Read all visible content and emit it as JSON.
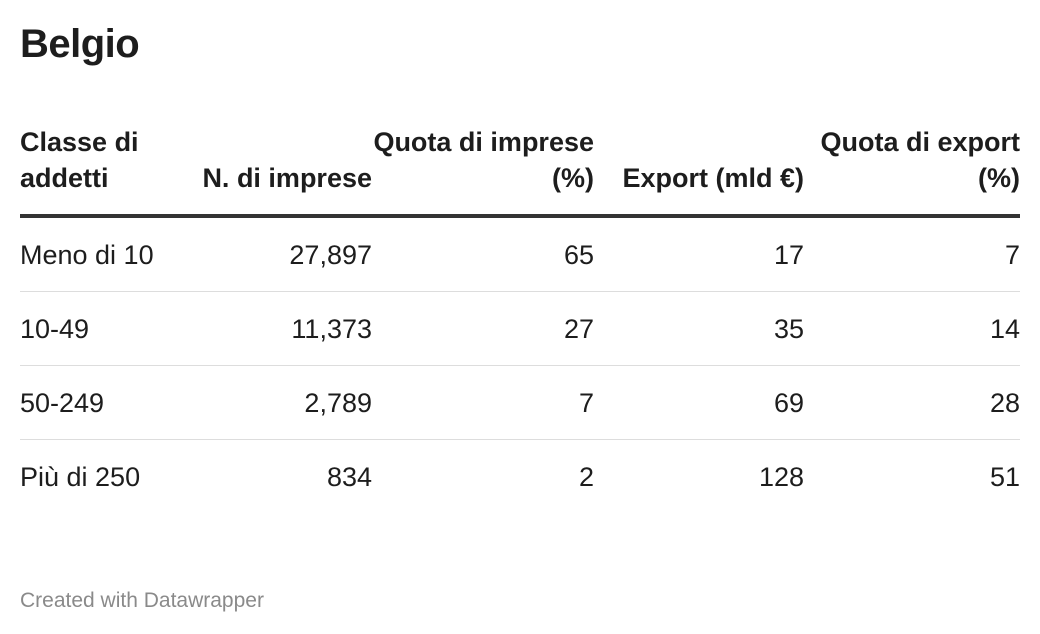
{
  "title": "Belgio",
  "footer": "Created with Datawrapper",
  "chart_data": {
    "type": "table",
    "title": "Belgio",
    "columns": [
      "Classe di addetti",
      "N. di imprese",
      "Quota di imprese (%)",
      "Export (mld €)",
      "Quota di export (%)"
    ],
    "rows": [
      [
        "Meno di 10",
        "27,897",
        "65",
        "17",
        "7"
      ],
      [
        "10-49",
        "11,373",
        "27",
        "35",
        "14"
      ],
      [
        "50-249",
        "2,789",
        "7",
        "69",
        "28"
      ],
      [
        "Più di 250",
        "834",
        "2",
        "128",
        "51"
      ]
    ]
  }
}
